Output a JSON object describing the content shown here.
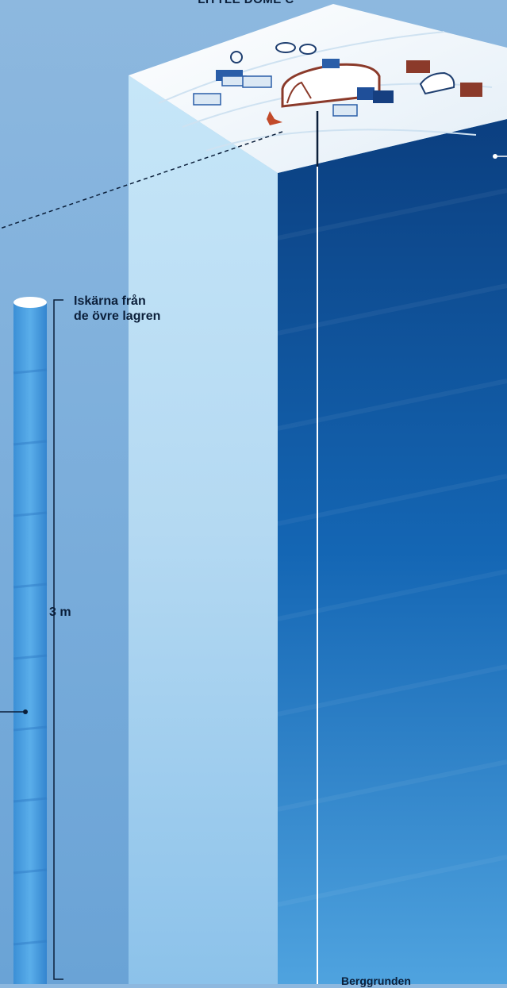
{
  "site": {
    "title": "LITTLE DOME C"
  },
  "core": {
    "label_line1": "Iskärna från",
    "label_line2": "de övre lagren",
    "length": "3 m"
  },
  "bottom": {
    "label": "Berggrunden"
  },
  "colors": {
    "background": "#7fb0dc",
    "ice_front": "#bfe2f6",
    "ice_side": "#0e4f93",
    "snow_top": "#f3f8fc",
    "ink": "#0b1f3a",
    "building_blue": "#2a5ea8",
    "building_red": "#8b3a2a"
  },
  "icons": [
    "drill-tower-icon",
    "research-hut-icon",
    "ice-core-cylinder"
  ]
}
